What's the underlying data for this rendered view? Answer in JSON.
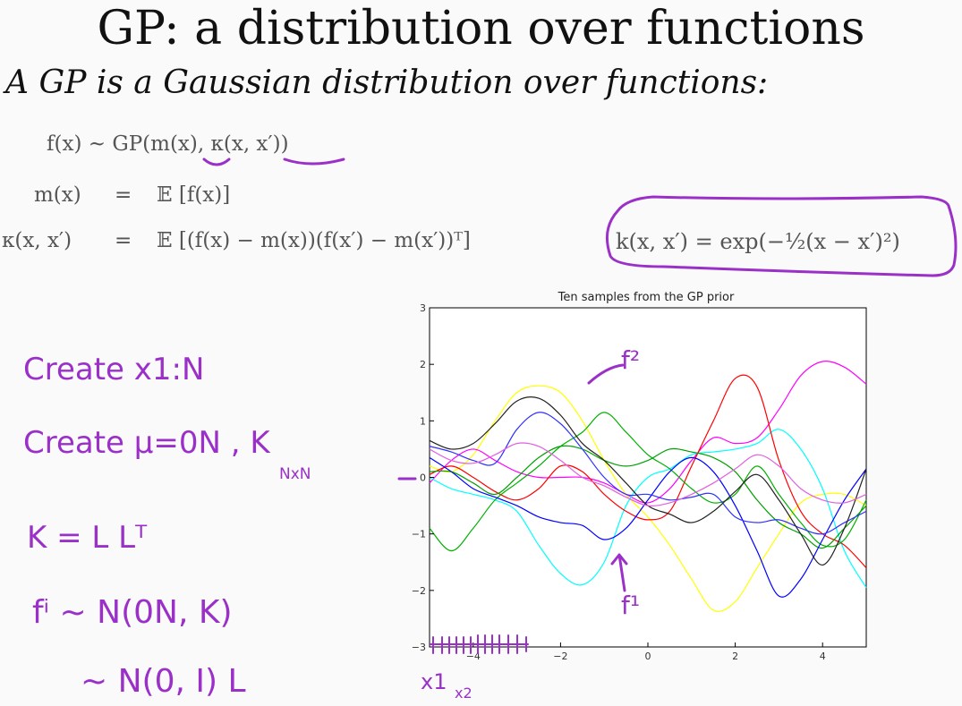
{
  "title": "GP: a distribution over functions",
  "subtitle": "A GP is a Gaussian distribution over functions:",
  "equations": {
    "gp_def": "f(x) ~ GP(m(x), κ(x, x′))",
    "mean_lhs": "m(x)",
    "mean_rhs": "𝔼 [f(x)]",
    "kernel_lhs": "κ(x, x′)",
    "kernel_rhs": "𝔼 [(f(x) − m(x))(f(x′) − m(x′))ᵀ]",
    "eq_sign": "=",
    "rbf_kernel": "k(x, x′) = exp(−½(x − x′)²)"
  },
  "handwritten": {
    "step1": "Create x1:N",
    "step2": "Create μ=0N , K",
    "step2_sub": "NxN",
    "step3": "K = L Lᵀ",
    "step4": "fⁱ ~ N(0N, K)",
    "step5": "~ N(0, I) L",
    "label_f2": "f²",
    "label_f1": "f¹",
    "label_x1": "x1",
    "label_x2": "x2"
  },
  "colors": {
    "ink": "#9b30c8"
  },
  "chart_data": {
    "type": "line",
    "title": "Ten samples from the GP prior",
    "xlabel": "",
    "ylabel": "",
    "xlim": [
      -5,
      5
    ],
    "ylim": [
      -3,
      3
    ],
    "xticks": [
      -4,
      -2,
      0,
      2,
      4
    ],
    "yticks": [
      -3,
      -2,
      -1,
      0,
      1,
      2,
      3
    ],
    "grid": false,
    "x": [
      -5,
      -4.5,
      -4,
      -3.5,
      -3,
      -2.5,
      -2,
      -1.5,
      -1,
      -0.5,
      0,
      0.5,
      1,
      1.5,
      2,
      2.5,
      3,
      3.5,
      4,
      4.5,
      5
    ],
    "series": [
      {
        "color": "#ffff00",
        "values": [
          0.2,
          0.1,
          0.4,
          1.0,
          1.5,
          1.62,
          1.5,
          1.0,
          0.3,
          -0.3,
          -0.7,
          -1.2,
          -1.8,
          -2.35,
          -2.2,
          -1.6,
          -1.0,
          -0.45,
          -0.3,
          -0.3,
          -0.5
        ]
      },
      {
        "color": "#ff00ff",
        "values": [
          -0.1,
          0.3,
          0.5,
          0.3,
          0.1,
          0.0,
          0.0,
          0.0,
          -0.1,
          -0.3,
          -0.45,
          -0.2,
          0.3,
          0.7,
          0.6,
          0.7,
          1.2,
          1.8,
          2.05,
          1.95,
          1.65
        ]
      },
      {
        "color": "#00ffff",
        "values": [
          0.0,
          -0.2,
          -0.3,
          -0.4,
          -0.6,
          -1.2,
          -1.7,
          -1.9,
          -1.5,
          -0.5,
          0.0,
          0.15,
          0.4,
          0.45,
          0.5,
          0.6,
          0.85,
          0.5,
          -0.2,
          -1.3,
          -1.95
        ]
      },
      {
        "color": "#ff0000",
        "values": [
          0.05,
          0.2,
          0.0,
          -0.25,
          -0.4,
          -0.2,
          0.2,
          0.1,
          -0.3,
          -0.6,
          -0.75,
          -0.6,
          0.2,
          1.0,
          1.75,
          1.6,
          0.3,
          -0.6,
          -1.0,
          -1.2,
          -1.6
        ]
      },
      {
        "color": "#00b000",
        "values": [
          -0.9,
          -1.3,
          -0.9,
          -0.4,
          -0.1,
          0.2,
          0.55,
          0.8,
          1.15,
          0.8,
          0.4,
          0.15,
          -0.2,
          -0.45,
          -0.3,
          0.2,
          -0.3,
          -0.8,
          -1.2,
          -1.1,
          -0.4
        ]
      },
      {
        "color": "#00a000",
        "values": [
          0.1,
          0.1,
          -0.1,
          -0.3,
          0.0,
          0.35,
          0.55,
          0.5,
          0.3,
          0.2,
          0.3,
          0.5,
          0.45,
          0.35,
          0.1,
          -0.4,
          -0.8,
          -1.0,
          -1.25,
          -0.9,
          -0.5
        ]
      },
      {
        "color": "#0000ff",
        "values": [
          0.35,
          0.1,
          -0.2,
          -0.35,
          -0.5,
          -0.7,
          -0.8,
          -0.85,
          -1.1,
          -0.9,
          -0.4,
          0.1,
          0.35,
          0.1,
          -0.5,
          -1.3,
          -2.1,
          -1.8,
          -1.1,
          -0.4,
          0.15
        ]
      },
      {
        "color": "#3030ff",
        "values": [
          0.55,
          0.45,
          0.3,
          0.25,
          0.85,
          1.15,
          0.95,
          0.5,
          0.0,
          -0.3,
          -0.3,
          -0.4,
          -0.35,
          -0.3,
          -0.7,
          -0.8,
          -0.75,
          -0.9,
          -1.0,
          -0.8,
          -0.6
        ]
      },
      {
        "color": "#222222",
        "values": [
          0.65,
          0.5,
          0.6,
          0.95,
          1.35,
          1.4,
          1.1,
          0.6,
          0.3,
          -0.1,
          -0.5,
          -0.65,
          -0.8,
          -0.6,
          -0.25,
          0.05,
          -0.4,
          -1.0,
          -1.55,
          -0.9,
          0.15
        ]
      },
      {
        "color": "#e060e0",
        "values": [
          0.5,
          0.3,
          0.25,
          0.4,
          0.6,
          0.55,
          0.3,
          0.0,
          -0.15,
          -0.35,
          -0.5,
          -0.45,
          -0.3,
          -0.1,
          0.15,
          0.4,
          0.2,
          -0.2,
          -0.4,
          -0.45,
          -0.3
        ]
      }
    ]
  }
}
